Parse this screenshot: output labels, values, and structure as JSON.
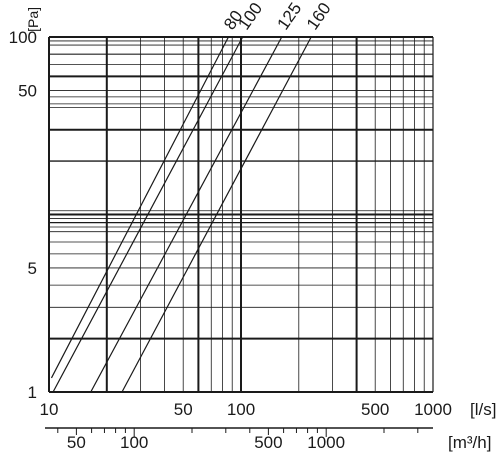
{
  "chart_data": {
    "type": "line",
    "x_scale": "log",
    "y_scale": "log",
    "xlim": [
      10,
      1000
    ],
    "ylim": [
      1,
      100
    ],
    "grid": true,
    "y_unit": "[Pa]",
    "x_unit": "[l/s]",
    "x2_unit": "[m³/h]",
    "x_ticks": [
      {
        "value": 10,
        "label": "10"
      },
      {
        "value": 50,
        "label": "50"
      },
      {
        "value": 100,
        "label": "100"
      },
      {
        "value": 500,
        "label": "500"
      },
      {
        "value": 1000,
        "label": "1000"
      }
    ],
    "y_ticks": [
      {
        "value": 1,
        "label": "1"
      },
      {
        "value": 5,
        "label": "5"
      },
      {
        "value": 50,
        "label": "50"
      },
      {
        "value": 100,
        "label": "100"
      }
    ],
    "x2_ticks": [
      {
        "value": 50,
        "label": "50"
      },
      {
        "value": 100,
        "label": "100"
      },
      {
        "value": 500,
        "label": "500"
      },
      {
        "value": 1000,
        "label": "1000"
      }
    ],
    "series": [
      {
        "name": "80",
        "points": [
          {
            "x": 10.3,
            "y": 1.2
          },
          {
            "x": 86,
            "y": 100
          }
        ]
      },
      {
        "name": "100",
        "points": [
          {
            "x": 10.5,
            "y": 1.0
          },
          {
            "x": 102,
            "y": 100
          }
        ]
      },
      {
        "name": "125",
        "points": [
          {
            "x": 16.5,
            "y": 1.0
          },
          {
            "x": 163,
            "y": 100
          }
        ]
      },
      {
        "name": "160",
        "points": [
          {
            "x": 24,
            "y": 1.0
          },
          {
            "x": 232,
            "y": 100
          }
        ]
      }
    ]
  }
}
